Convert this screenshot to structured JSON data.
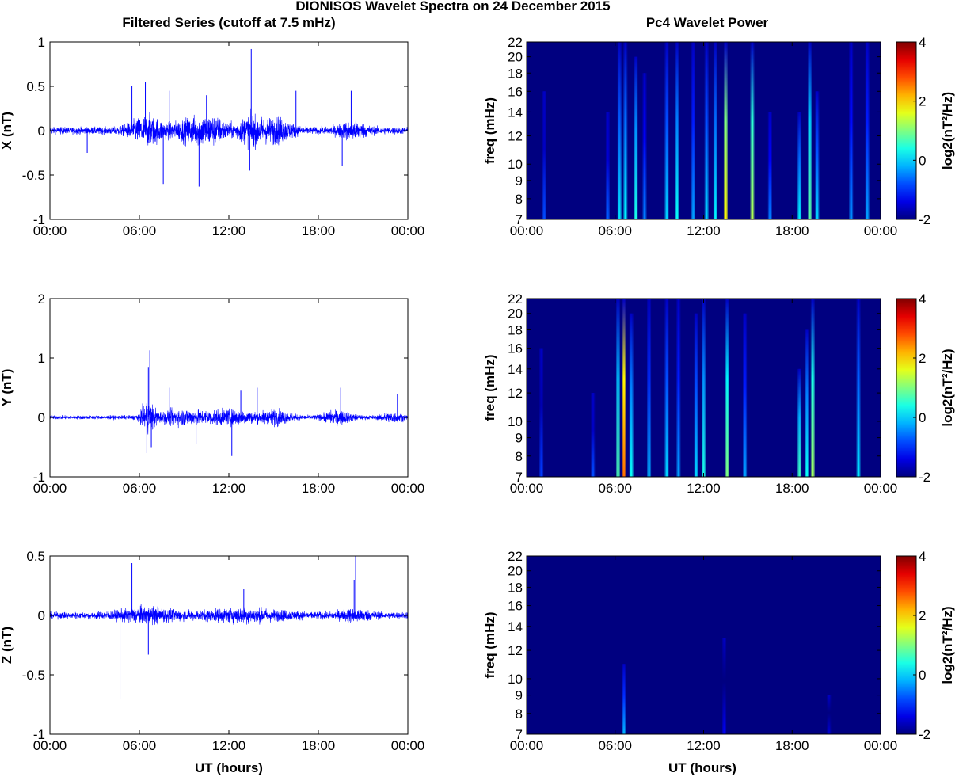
{
  "figure": {
    "title": "DIONISOS Wavelet Spectra on 24 December 2015",
    "left_column_title": "Filtered Series (cutoff at 7.5 mHz)",
    "right_column_title": "Pc4 Wavelet Power",
    "xlabel": "UT (hours)"
  },
  "chart_data": [
    {
      "type": "line",
      "name": "series-x",
      "ylabel": "X (nT)",
      "ylim": [
        -1,
        1
      ],
      "yticks": [
        -1,
        -0.5,
        0,
        0.5,
        1
      ],
      "ytick_labels": [
        "-1",
        "-0.5",
        "0",
        "0.5",
        "1"
      ],
      "xlim": [
        0,
        24
      ],
      "xticks": [
        0,
        6,
        12,
        18,
        24
      ],
      "xtick_labels": [
        "00:00",
        "06:00",
        "12:00",
        "18:00",
        "00:00"
      ],
      "color": "#0000ff",
      "base_amplitude": 0.05,
      "activity": [
        {
          "t": 6.5,
          "width": 1.2,
          "amp": 0.17
        },
        {
          "t": 9.5,
          "width": 1.3,
          "amp": 0.14
        },
        {
          "t": 11.0,
          "width": 1.0,
          "amp": 0.13
        },
        {
          "t": 13.5,
          "width": 1.0,
          "amp": 0.17
        },
        {
          "t": 15.3,
          "width": 1.0,
          "amp": 0.14
        },
        {
          "t": 20.3,
          "width": 1.0,
          "amp": 0.1
        }
      ],
      "spikes": [
        {
          "t": 2.5,
          "v": -0.25
        },
        {
          "t": 5.5,
          "v": 0.5
        },
        {
          "t": 6.4,
          "v": 0.55
        },
        {
          "t": 7.6,
          "v": -0.6
        },
        {
          "t": 8.0,
          "v": 0.45
        },
        {
          "t": 10.0,
          "v": -0.63
        },
        {
          "t": 13.5,
          "v": 0.92
        },
        {
          "t": 13.4,
          "v": -0.45
        },
        {
          "t": 16.5,
          "v": 0.45
        },
        {
          "t": 20.2,
          "v": 0.45
        },
        {
          "t": 19.6,
          "v": -0.4
        },
        {
          "t": 10.5,
          "v": 0.4
        }
      ]
    },
    {
      "type": "line",
      "name": "series-y",
      "ylabel": "Y (nT)",
      "ylim": [
        -1,
        2
      ],
      "yticks": [
        -1,
        0,
        1,
        2
      ],
      "ytick_labels": [
        "-1",
        "0",
        "1",
        "2"
      ],
      "xlim": [
        0,
        24
      ],
      "xticks": [
        0,
        6,
        12,
        18,
        24
      ],
      "xtick_labels": [
        "00:00",
        "06:00",
        "12:00",
        "18:00",
        "00:00"
      ],
      "color": "#0000ff",
      "base_amplitude": 0.04,
      "activity": [
        {
          "t": 6.6,
          "width": 0.5,
          "amp": 0.28
        },
        {
          "t": 8.5,
          "width": 1.5,
          "amp": 0.12
        },
        {
          "t": 11.8,
          "width": 2.5,
          "amp": 0.13
        },
        {
          "t": 15.2,
          "width": 1.0,
          "amp": 0.12
        },
        {
          "t": 19.3,
          "width": 1.0,
          "amp": 0.12
        },
        {
          "t": 23.0,
          "width": 0.8,
          "amp": 0.08
        }
      ],
      "spikes": [
        {
          "t": 6.7,
          "v": 1.13
        },
        {
          "t": 6.6,
          "v": 0.85
        },
        {
          "t": 6.5,
          "v": -0.6
        },
        {
          "t": 6.8,
          "v": -0.5
        },
        {
          "t": 8.0,
          "v": 0.5
        },
        {
          "t": 12.2,
          "v": -0.65
        },
        {
          "t": 12.8,
          "v": 0.45
        },
        {
          "t": 13.9,
          "v": 0.5
        },
        {
          "t": 19.5,
          "v": 0.5
        },
        {
          "t": 23.3,
          "v": 0.4
        },
        {
          "t": 9.8,
          "v": -0.45
        }
      ]
    },
    {
      "type": "line",
      "name": "series-z",
      "ylabel": "Z (nT)",
      "ylim": [
        -1,
        0.5
      ],
      "yticks": [
        -1,
        -0.5,
        0,
        0.5
      ],
      "ytick_labels": [
        "-1",
        "-0.5",
        "0",
        "0.5"
      ],
      "xlim": [
        0,
        24
      ],
      "xticks": [
        0,
        6,
        12,
        18,
        24
      ],
      "xtick_labels": [
        "00:00",
        "06:00",
        "12:00",
        "18:00",
        "00:00"
      ],
      "color": "#0000ff",
      "base_amplitude": 0.035,
      "activity": [
        {
          "t": 6.5,
          "width": 2.0,
          "amp": 0.06
        },
        {
          "t": 13.0,
          "width": 3.0,
          "amp": 0.05
        },
        {
          "t": 20.5,
          "width": 1.0,
          "amp": 0.05
        }
      ],
      "spikes": [
        {
          "t": 4.7,
          "v": -0.7
        },
        {
          "t": 5.5,
          "v": 0.44
        },
        {
          "t": 6.6,
          "v": -0.33
        },
        {
          "t": 20.5,
          "v": 0.5
        },
        {
          "t": 20.4,
          "v": 0.3
        },
        {
          "t": 13.0,
          "v": 0.22
        }
      ]
    },
    {
      "type": "heatmap",
      "name": "wavelet-x",
      "ylabel": "freq (mHz)",
      "yscale": "log",
      "ylim": [
        7,
        22
      ],
      "yticks": [
        7,
        8,
        9,
        10,
        12,
        14,
        16,
        18,
        20,
        22
      ],
      "ytick_labels": [
        "7",
        "8",
        "9",
        "10",
        "12",
        "14",
        "16",
        "18",
        "20",
        "22"
      ],
      "xlim": [
        0,
        24
      ],
      "xticks": [
        0,
        6,
        12,
        18,
        24
      ],
      "xtick_labels": [
        "00:00",
        "06:00",
        "12:00",
        "18:00",
        "00:00"
      ],
      "colorbar_label": "log2(nT²/Hz)",
      "colorbar_ticks": [
        -2,
        0,
        2,
        4
      ],
      "colorbar_tick_labels": [
        "-2",
        "0",
        "2",
        "4"
      ],
      "clim": [
        -2,
        4
      ],
      "events": [
        {
          "t": 1.2,
          "fmin": 7,
          "fmax": 16,
          "p": -0.8
        },
        {
          "t": 5.5,
          "fmin": 7,
          "fmax": 14,
          "p": -0.7
        },
        {
          "t": 6.3,
          "fmin": 7,
          "fmax": 22,
          "p": 0.1
        },
        {
          "t": 6.7,
          "fmin": 7,
          "fmax": 22,
          "p": 0.2
        },
        {
          "t": 7.4,
          "fmin": 7,
          "fmax": 20,
          "p": 0.4
        },
        {
          "t": 8.0,
          "fmin": 7,
          "fmax": 18,
          "p": -0.5
        },
        {
          "t": 9.5,
          "fmin": 7,
          "fmax": 22,
          "p": 0.0
        },
        {
          "t": 10.2,
          "fmin": 7,
          "fmax": 22,
          "p": 0.3
        },
        {
          "t": 11.3,
          "fmin": 7,
          "fmax": 22,
          "p": -0.3
        },
        {
          "t": 12.2,
          "fmin": 7,
          "fmax": 22,
          "p": 0.0
        },
        {
          "t": 12.8,
          "fmin": 7,
          "fmax": 22,
          "p": 0.2
        },
        {
          "t": 13.5,
          "fmin": 7,
          "fmax": 22,
          "p": 1.8
        },
        {
          "t": 15.3,
          "fmin": 7,
          "fmax": 22,
          "p": 1.3
        },
        {
          "t": 16.5,
          "fmin": 7,
          "fmax": 14,
          "p": -0.5
        },
        {
          "t": 18.5,
          "fmin": 7,
          "fmax": 14,
          "p": 0.2
        },
        {
          "t": 19.2,
          "fmin": 7,
          "fmax": 22,
          "p": 0.8
        },
        {
          "t": 19.7,
          "fmin": 7,
          "fmax": 16,
          "p": 0.0
        },
        {
          "t": 22.0,
          "fmin": 7,
          "fmax": 22,
          "p": -0.4
        },
        {
          "t": 23.1,
          "fmin": 7,
          "fmax": 22,
          "p": -0.3
        }
      ]
    },
    {
      "type": "heatmap",
      "name": "wavelet-y",
      "ylabel": "freq (mHz)",
      "yscale": "log",
      "ylim": [
        7,
        22
      ],
      "yticks": [
        7,
        8,
        9,
        10,
        12,
        14,
        16,
        18,
        20,
        22
      ],
      "ytick_labels": [
        "7",
        "8",
        "9",
        "10",
        "12",
        "14",
        "16",
        "18",
        "20",
        "22"
      ],
      "xlim": [
        0,
        24
      ],
      "xticks": [
        0,
        6,
        12,
        18,
        24
      ],
      "xtick_labels": [
        "00:00",
        "06:00",
        "12:00",
        "18:00",
        "00:00"
      ],
      "colorbar_label": "log2(nT²/Hz)",
      "colorbar_ticks": [
        -2,
        0,
        2,
        4
      ],
      "colorbar_tick_labels": [
        "-2",
        "0",
        "2",
        "4"
      ],
      "clim": [
        -2,
        4
      ],
      "events": [
        {
          "t": 1.0,
          "fmin": 7,
          "fmax": 16,
          "p": -0.9
        },
        {
          "t": 4.5,
          "fmin": 7,
          "fmax": 12,
          "p": -0.8
        },
        {
          "t": 6.2,
          "fmin": 7,
          "fmax": 22,
          "p": 0.7
        },
        {
          "t": 6.6,
          "fmin": 7,
          "fmax": 22,
          "p": 2.6
        },
        {
          "t": 7.1,
          "fmin": 7,
          "fmax": 20,
          "p": 0.3
        },
        {
          "t": 8.3,
          "fmin": 7,
          "fmax": 22,
          "p": -0.2
        },
        {
          "t": 9.5,
          "fmin": 7,
          "fmax": 22,
          "p": 0.0
        },
        {
          "t": 10.3,
          "fmin": 7,
          "fmax": 22,
          "p": -0.3
        },
        {
          "t": 11.5,
          "fmin": 7,
          "fmax": 20,
          "p": 0.0
        },
        {
          "t": 12.0,
          "fmin": 7,
          "fmax": 22,
          "p": 0.4
        },
        {
          "t": 13.6,
          "fmin": 7,
          "fmax": 22,
          "p": 1.0
        },
        {
          "t": 14.8,
          "fmin": 7,
          "fmax": 20,
          "p": -0.3
        },
        {
          "t": 18.5,
          "fmin": 7,
          "fmax": 14,
          "p": 0.6
        },
        {
          "t": 19.0,
          "fmin": 7,
          "fmax": 18,
          "p": 0.3
        },
        {
          "t": 19.4,
          "fmin": 7,
          "fmax": 22,
          "p": 1.2
        },
        {
          "t": 22.5,
          "fmin": 7,
          "fmax": 22,
          "p": 0.1
        }
      ]
    },
    {
      "type": "heatmap",
      "name": "wavelet-z",
      "ylabel": "freq (mHz)",
      "yscale": "log",
      "ylim": [
        7,
        22
      ],
      "yticks": [
        7,
        8,
        9,
        10,
        12,
        14,
        16,
        18,
        20,
        22
      ],
      "ytick_labels": [
        "7",
        "8",
        "9",
        "10",
        "12",
        "14",
        "16",
        "18",
        "20",
        "22"
      ],
      "xlim": [
        0,
        24
      ],
      "xticks": [
        0,
        6,
        12,
        18,
        24
      ],
      "xtick_labels": [
        "00:00",
        "06:00",
        "12:00",
        "18:00",
        "00:00"
      ],
      "colorbar_label": "log2(nT²/Hz)",
      "colorbar_ticks": [
        -2,
        0,
        2,
        4
      ],
      "colorbar_tick_labels": [
        "-2",
        "0",
        "2",
        "4"
      ],
      "clim": [
        -2,
        4
      ],
      "events": [
        {
          "t": 6.6,
          "fmin": 7,
          "fmax": 11,
          "p": -0.2
        },
        {
          "t": 13.4,
          "fmin": 7,
          "fmax": 13,
          "p": -1.3
        },
        {
          "t": 20.5,
          "fmin": 7,
          "fmax": 9,
          "p": -1.5
        }
      ]
    }
  ]
}
